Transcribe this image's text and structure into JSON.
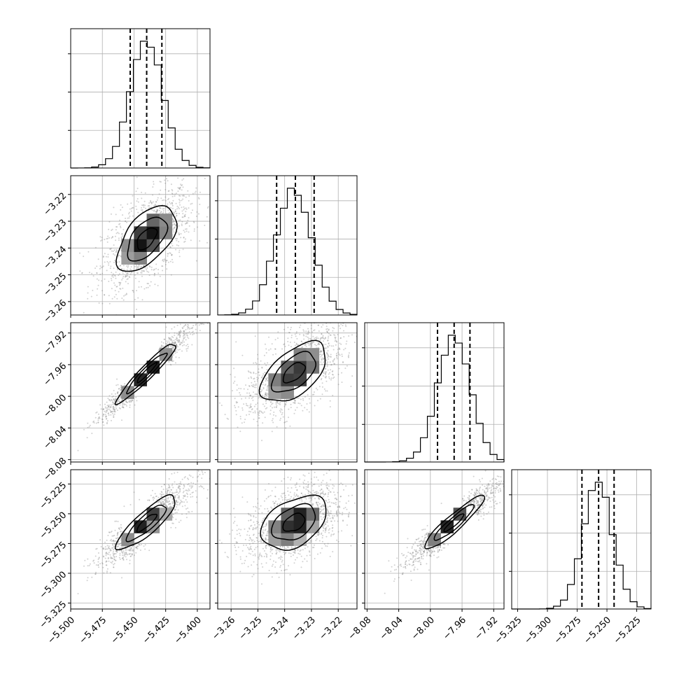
{
  "chart_data": {
    "type": "corner",
    "colors": {
      "line": "#000000",
      "points": "#7a7a7a",
      "grid": "#b0b0b0",
      "density_max": "#000000"
    },
    "grid": true,
    "parameters": [
      {
        "name": "",
        "range": [
          -5.5,
          -5.39
        ],
        "ticks": [
          -5.5,
          -5.475,
          -5.45,
          -5.425,
          -5.4
        ],
        "tick_labels": [
          "−5.500",
          "−5.475",
          "−5.450",
          "−5.425",
          "−5.400"
        ],
        "mean": -5.44,
        "std": 0.013,
        "quantiles": [
          -5.453,
          -5.44,
          -5.428
        ]
      },
      {
        "name": "",
        "range": [
          -3.265,
          -3.213
        ],
        "ticks": [
          -3.26,
          -3.25,
          -3.24,
          -3.23,
          -3.22
        ],
        "tick_labels": [
          "−3.26",
          "−3.25",
          "−3.24",
          "−3.23",
          "−3.22"
        ],
        "mean": -3.2365,
        "std": 0.0068,
        "quantiles": [
          -3.243,
          -3.236,
          -3.229
        ]
      },
      {
        "name": "",
        "range": [
          -8.083,
          -7.907
        ],
        "ticks": [
          -8.08,
          -8.04,
          -8.0,
          -7.96,
          -7.92
        ],
        "tick_labels": [
          "−8.08",
          "−8.04",
          "−8.00",
          "−7.96",
          "−7.92"
        ],
        "mean": -7.97,
        "std": 0.021,
        "quantiles": [
          -7.991,
          -7.97,
          -7.95
        ]
      },
      {
        "name": "",
        "range": [
          -5.33,
          -5.213
        ],
        "ticks": [
          -5.325,
          -5.3,
          -5.275,
          -5.25,
          -5.225
        ],
        "tick_labels": [
          "−5.325",
          "−5.300",
          "−5.275",
          "−5.250",
          "−5.225"
        ],
        "mean": -5.2575,
        "std": 0.0125,
        "quantiles": [
          -5.271,
          -5.257,
          -5.244
        ]
      }
    ],
    "correlations": [
      [
        1.0,
        0.55,
        0.95,
        0.85
      ],
      [
        0.55,
        1.0,
        0.55,
        0.4
      ],
      [
        0.95,
        0.55,
        1.0,
        0.92
      ],
      [
        0.85,
        0.4,
        0.92,
        1.0
      ]
    ],
    "contour_levels_sigma": [
      0.5,
      1.0,
      1.5
    ],
    "histogram_bins": 20
  }
}
